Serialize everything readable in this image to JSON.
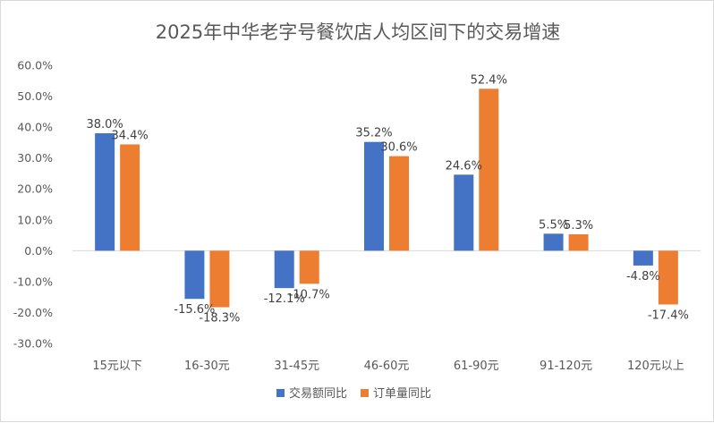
{
  "chart_data": {
    "type": "bar",
    "title": "2025年中华老字号餐饮店人均区间下的交易增速",
    "categories": [
      "15元以下",
      "16-30元",
      "31-45元",
      "46-60元",
      "61-90元",
      "91-120元",
      "120元以上"
    ],
    "series": [
      {
        "name": "交易额同比",
        "color": "#4472C4",
        "values": [
          38.0,
          -15.6,
          -12.1,
          35.2,
          24.6,
          5.5,
          -4.8
        ],
        "labels": [
          "38.0%",
          "-15.6%",
          "-12.1%",
          "35.2%",
          "24.6%",
          "5.5%",
          "-4.8%"
        ]
      },
      {
        "name": "订单量同比",
        "color": "#ED7D31",
        "values": [
          34.4,
          -18.3,
          -10.7,
          30.6,
          52.4,
          5.3,
          -17.4
        ],
        "labels": [
          "34.4%",
          "-18.3%",
          "-10.7%",
          "30.6%",
          "52.4%",
          "5.3%",
          "-17.4%"
        ]
      }
    ],
    "ylim": [
      -30,
      60
    ],
    "yticks": [
      60,
      50,
      40,
      30,
      20,
      10,
      0,
      -10,
      -20,
      -30
    ],
    "ytick_labels": [
      "60.0%",
      "50.0%",
      "40.0%",
      "30.0%",
      "20.0%",
      "10.0%",
      "0.0%",
      "-10.0%",
      "-20.0%",
      "-30.0%"
    ],
    "xlabel": "",
    "ylabel": "",
    "grid": false,
    "legend_position": "bottom"
  }
}
